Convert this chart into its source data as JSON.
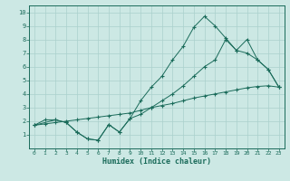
{
  "xlabel": "Humidex (Indice chaleur)",
  "bg_color": "#cce8e4",
  "grid_color": "#aad0cc",
  "line_color": "#1a6b5a",
  "xlim": [
    -0.5,
    23.5
  ],
  "ylim": [
    0,
    10.5
  ],
  "xticks": [
    0,
    1,
    2,
    3,
    4,
    5,
    6,
    7,
    8,
    9,
    10,
    11,
    12,
    13,
    14,
    15,
    16,
    17,
    18,
    19,
    20,
    21,
    22,
    23
  ],
  "yticks": [
    1,
    2,
    3,
    4,
    5,
    6,
    7,
    8,
    9,
    10
  ],
  "line1_x": [
    0,
    1,
    2,
    3,
    4,
    5,
    6,
    7,
    8,
    9,
    10,
    11,
    12,
    13,
    14,
    15,
    16,
    17,
    18,
    19,
    20,
    21,
    22,
    23
  ],
  "line1_y": [
    1.7,
    2.1,
    2.1,
    1.9,
    1.2,
    0.7,
    0.6,
    1.75,
    1.2,
    2.2,
    3.5,
    4.5,
    5.3,
    6.5,
    7.5,
    8.9,
    9.7,
    9.0,
    8.1,
    7.2,
    8.0,
    6.5,
    5.8,
    4.5
  ],
  "line2_x": [
    0,
    2,
    3,
    4,
    5,
    6,
    7,
    8,
    9,
    10,
    11,
    12,
    13,
    14,
    15,
    16,
    17,
    18,
    19,
    20,
    21,
    22,
    23
  ],
  "line2_y": [
    1.7,
    2.1,
    1.9,
    1.2,
    0.7,
    0.6,
    1.75,
    1.2,
    2.2,
    2.5,
    3.0,
    3.5,
    4.0,
    4.6,
    5.3,
    6.0,
    6.5,
    8.0,
    7.2,
    7.0,
    6.5,
    5.8,
    4.5
  ],
  "line3_x": [
    0,
    1,
    2,
    3,
    4,
    5,
    6,
    7,
    8,
    9,
    10,
    11,
    12,
    13,
    14,
    15,
    16,
    17,
    18,
    19,
    20,
    21,
    22,
    23
  ],
  "line3_y": [
    1.7,
    1.8,
    1.9,
    2.0,
    2.1,
    2.2,
    2.3,
    2.4,
    2.5,
    2.6,
    2.8,
    3.0,
    3.15,
    3.3,
    3.5,
    3.7,
    3.85,
    4.0,
    4.15,
    4.3,
    4.45,
    4.55,
    4.6,
    4.5
  ]
}
